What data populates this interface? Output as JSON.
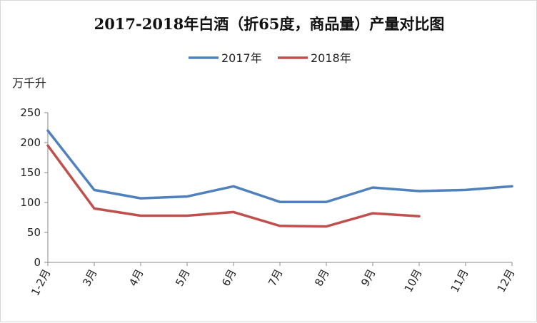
{
  "chart_data": {
    "type": "line",
    "title": "2017-2018年白酒（折65度，商品量）产量对比图",
    "ylabel": "万千升",
    "xlabel": "",
    "categories": [
      "1-2月",
      "3月",
      "4月",
      "5月",
      "6月",
      "7月",
      "8月",
      "9月",
      "10月",
      "11月",
      "12月"
    ],
    "ylim": [
      0,
      250
    ],
    "yticks": [
      0,
      50,
      100,
      150,
      200,
      250
    ],
    "legend_position": "top-center",
    "grid": false,
    "series": [
      {
        "name": "2017年",
        "color": "#4f81bd",
        "values": [
          220,
          121,
          107,
          110,
          127,
          101,
          101,
          125,
          119,
          121,
          127
        ]
      },
      {
        "name": "2018年",
        "color": "#c0504d",
        "values": [
          195,
          90,
          78,
          78,
          84,
          61,
          60,
          82,
          77,
          null,
          null
        ]
      }
    ]
  }
}
